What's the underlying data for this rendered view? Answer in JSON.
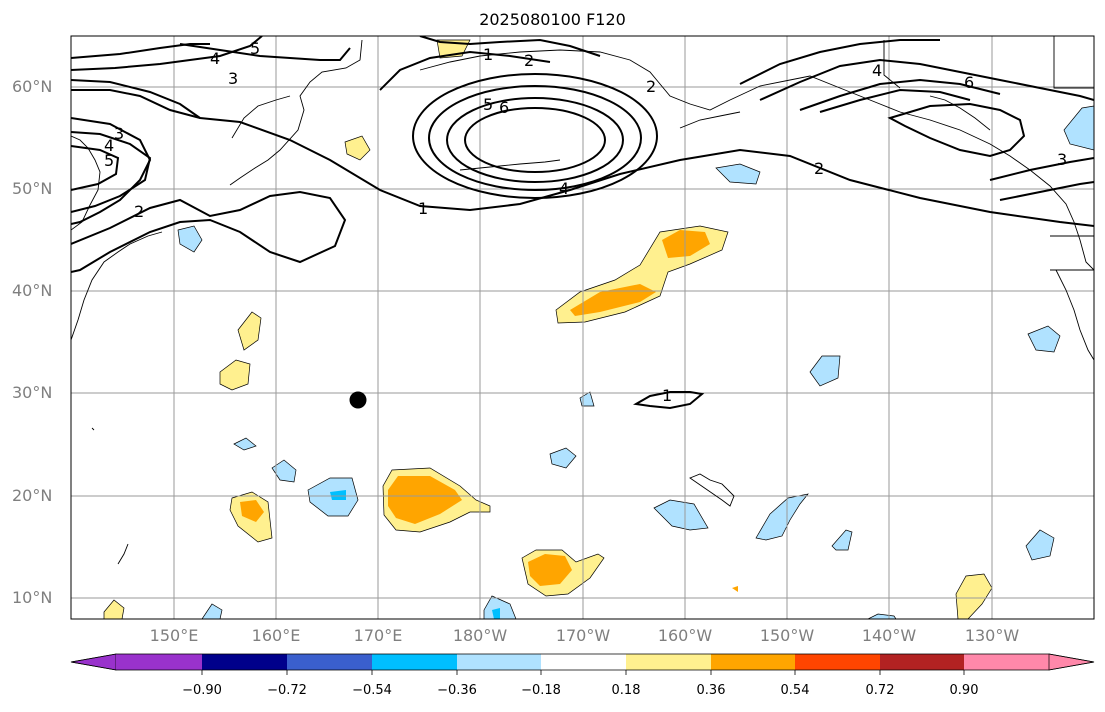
{
  "title": "2025080100 F120",
  "lat_labels": [
    "60°N",
    "50°N",
    "40°N",
    "30°N",
    "20°N",
    "10°N"
  ],
  "lon_labels": [
    "150°E",
    "160°E",
    "170°E",
    "180°W",
    "170°W",
    "160°W",
    "150°W",
    "140°W",
    "130°W"
  ],
  "contour_labels": [
    "5",
    "4",
    "3",
    "3",
    "4",
    "5",
    "2",
    "5",
    "6",
    "1",
    "2",
    "2",
    "4",
    "1",
    "4",
    "6",
    "2",
    "3",
    "1"
  ],
  "colorbar": {
    "ticks": [
      "−0.90",
      "−0.72",
      "−0.54",
      "−0.36",
      "−0.18",
      "0.18",
      "0.36",
      "0.54",
      "0.72",
      "0.90"
    ],
    "colors": [
      "#9932cc",
      "#9932cc",
      "#00008b",
      "#3a5fcd",
      "#00bfff",
      "#b0e2ff",
      "#ffffff",
      "#fff08f",
      "#ffa500",
      "#ff4500",
      "#b22222",
      "#ff88aa"
    ]
  },
  "marker": {
    "name": "station-point",
    "lat": 29.3,
    "lon": 172
  }
}
